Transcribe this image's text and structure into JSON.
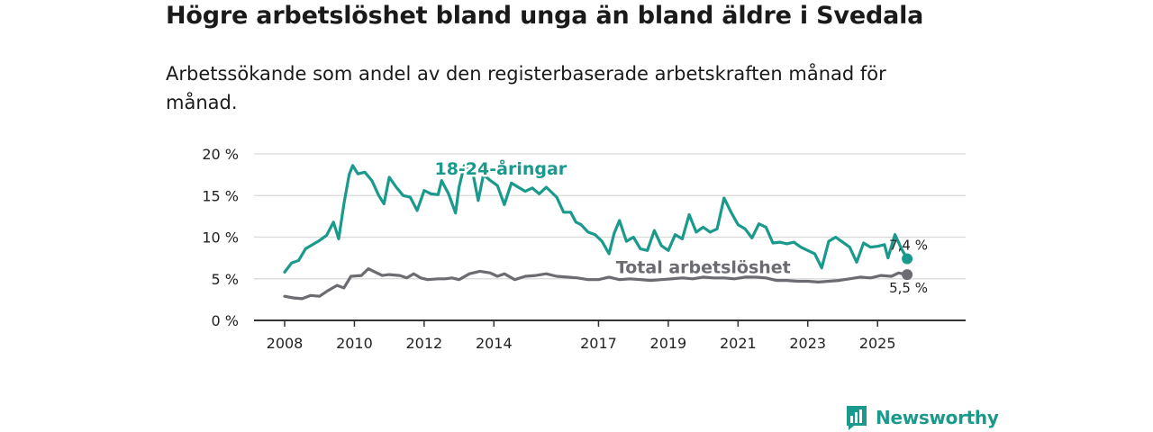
{
  "title": "Högre arbetslöshet bland unga än bland äldre i Svedala",
  "subtitle": "Arbetssökande som andel av den registerbaserade arbetskraften månad för månad.",
  "brand": {
    "name": "Newsworthy",
    "icon": "newsworthy-logo-icon",
    "color": "#1a9a8c"
  },
  "chart_data": {
    "type": "line",
    "title": "Högre arbetslöshet bland unga än bland äldre i Svedala",
    "xlabel": "",
    "ylabel": "",
    "ylim": [
      0,
      20
    ],
    "xlim": [
      2008,
      2026.7
    ],
    "grid": true,
    "y_ticks": [
      {
        "value": 0,
        "label": "0 %"
      },
      {
        "value": 5,
        "label": "5 %"
      },
      {
        "value": 10,
        "label": "10 %"
      },
      {
        "value": 15,
        "label": "15 %"
      },
      {
        "value": 20,
        "label": "20 %"
      }
    ],
    "x_ticks": [
      {
        "value": 2008,
        "label": "2008"
      },
      {
        "value": 2010,
        "label": "2010"
      },
      {
        "value": 2012,
        "label": "2012"
      },
      {
        "value": 2014,
        "label": "2014"
      },
      {
        "value": 2017,
        "label": "2017"
      },
      {
        "value": 2019,
        "label": "2019"
      },
      {
        "value": 2021,
        "label": "2021"
      },
      {
        "value": 2023,
        "label": "2023"
      },
      {
        "value": 2025,
        "label": "2025"
      }
    ],
    "series": [
      {
        "name": "18-24-åringar",
        "color": "#1a9a8c",
        "end_label": "7,4 %",
        "points": [
          [
            2008.0,
            5.8
          ],
          [
            2008.2,
            6.9
          ],
          [
            2008.4,
            7.2
          ],
          [
            2008.6,
            8.6
          ],
          [
            2008.8,
            9.1
          ],
          [
            2009.0,
            9.6
          ],
          [
            2009.2,
            10.2
          ],
          [
            2009.4,
            11.8
          ],
          [
            2009.55,
            9.8
          ],
          [
            2009.7,
            14.0
          ],
          [
            2009.85,
            17.5
          ],
          [
            2009.95,
            18.6
          ],
          [
            2010.1,
            17.6
          ],
          [
            2010.3,
            17.8
          ],
          [
            2010.5,
            16.8
          ],
          [
            2010.7,
            15.0
          ],
          [
            2010.85,
            14.0
          ],
          [
            2011.0,
            17.2
          ],
          [
            2011.2,
            16.0
          ],
          [
            2011.4,
            15.0
          ],
          [
            2011.6,
            14.8
          ],
          [
            2011.8,
            13.2
          ],
          [
            2012.0,
            15.6
          ],
          [
            2012.2,
            15.2
          ],
          [
            2012.4,
            15.1
          ],
          [
            2012.5,
            16.8
          ],
          [
            2012.7,
            15.2
          ],
          [
            2012.9,
            12.9
          ],
          [
            2013.0,
            16.0
          ],
          [
            2013.15,
            18.6
          ],
          [
            2013.4,
            17.6
          ],
          [
            2013.55,
            14.4
          ],
          [
            2013.7,
            17.5
          ],
          [
            2013.9,
            16.8
          ],
          [
            2014.1,
            16.2
          ],
          [
            2014.3,
            13.9
          ],
          [
            2014.5,
            16.5
          ],
          [
            2014.7,
            16.0
          ],
          [
            2014.9,
            15.5
          ],
          [
            2015.1,
            15.9
          ],
          [
            2015.3,
            15.2
          ],
          [
            2015.5,
            16.0
          ],
          [
            2015.65,
            15.4
          ],
          [
            2015.8,
            14.8
          ],
          [
            2016.0,
            13.0
          ],
          [
            2016.2,
            13.0
          ],
          [
            2016.35,
            11.8
          ],
          [
            2016.5,
            11.5
          ],
          [
            2016.7,
            10.6
          ],
          [
            2016.9,
            10.3
          ],
          [
            2017.1,
            9.5
          ],
          [
            2017.3,
            8.0
          ],
          [
            2017.45,
            10.5
          ],
          [
            2017.6,
            12.0
          ],
          [
            2017.8,
            9.5
          ],
          [
            2018.0,
            10.0
          ],
          [
            2018.2,
            8.6
          ],
          [
            2018.4,
            8.4
          ],
          [
            2018.6,
            10.8
          ],
          [
            2018.8,
            9.0
          ],
          [
            2019.0,
            8.4
          ],
          [
            2019.2,
            10.3
          ],
          [
            2019.4,
            9.8
          ],
          [
            2019.6,
            12.7
          ],
          [
            2019.8,
            10.6
          ],
          [
            2020.0,
            11.2
          ],
          [
            2020.2,
            10.6
          ],
          [
            2020.4,
            11.0
          ],
          [
            2020.6,
            14.7
          ],
          [
            2020.8,
            13.0
          ],
          [
            2021.0,
            11.5
          ],
          [
            2021.2,
            11.0
          ],
          [
            2021.4,
            9.9
          ],
          [
            2021.6,
            11.6
          ],
          [
            2021.8,
            11.2
          ],
          [
            2022.0,
            9.3
          ],
          [
            2022.2,
            9.4
          ],
          [
            2022.4,
            9.2
          ],
          [
            2022.6,
            9.4
          ],
          [
            2022.8,
            8.8
          ],
          [
            2023.0,
            8.4
          ],
          [
            2023.2,
            8.0
          ],
          [
            2023.4,
            6.3
          ],
          [
            2023.6,
            9.5
          ],
          [
            2023.8,
            10.0
          ],
          [
            2024.0,
            9.4
          ],
          [
            2024.2,
            8.8
          ],
          [
            2024.4,
            7.0
          ],
          [
            2024.6,
            9.3
          ],
          [
            2024.8,
            8.8
          ],
          [
            2025.0,
            8.9
          ],
          [
            2025.2,
            9.1
          ],
          [
            2025.3,
            7.5
          ],
          [
            2025.5,
            10.3
          ],
          [
            2025.7,
            8.5
          ],
          [
            2025.85,
            7.4
          ]
        ]
      },
      {
        "name": "Total arbetslöshet",
        "color": "#6b6b72",
        "end_label": "5,5 %",
        "points": [
          [
            2008.0,
            2.9
          ],
          [
            2008.25,
            2.7
          ],
          [
            2008.5,
            2.6
          ],
          [
            2008.75,
            3.0
          ],
          [
            2009.0,
            2.9
          ],
          [
            2009.25,
            3.6
          ],
          [
            2009.5,
            4.2
          ],
          [
            2009.7,
            3.9
          ],
          [
            2009.9,
            5.3
          ],
          [
            2010.2,
            5.4
          ],
          [
            2010.4,
            6.2
          ],
          [
            2010.6,
            5.8
          ],
          [
            2010.8,
            5.4
          ],
          [
            2011.0,
            5.5
          ],
          [
            2011.3,
            5.4
          ],
          [
            2011.5,
            5.1
          ],
          [
            2011.7,
            5.6
          ],
          [
            2011.9,
            5.1
          ],
          [
            2012.1,
            4.9
          ],
          [
            2012.4,
            5.0
          ],
          [
            2012.6,
            5.0
          ],
          [
            2012.8,
            5.1
          ],
          [
            2013.0,
            4.9
          ],
          [
            2013.3,
            5.6
          ],
          [
            2013.6,
            5.9
          ],
          [
            2013.9,
            5.7
          ],
          [
            2014.1,
            5.3
          ],
          [
            2014.3,
            5.6
          ],
          [
            2014.6,
            4.9
          ],
          [
            2014.9,
            5.3
          ],
          [
            2015.2,
            5.4
          ],
          [
            2015.5,
            5.6
          ],
          [
            2015.8,
            5.3
          ],
          [
            2016.1,
            5.2
          ],
          [
            2016.4,
            5.1
          ],
          [
            2016.7,
            4.9
          ],
          [
            2017.0,
            4.9
          ],
          [
            2017.3,
            5.2
          ],
          [
            2017.6,
            4.9
          ],
          [
            2017.9,
            5.0
          ],
          [
            2018.2,
            4.9
          ],
          [
            2018.5,
            4.8
          ],
          [
            2018.8,
            4.9
          ],
          [
            2019.1,
            5.0
          ],
          [
            2019.4,
            5.1
          ],
          [
            2019.7,
            5.0
          ],
          [
            2020.0,
            5.2
          ],
          [
            2020.3,
            5.1
          ],
          [
            2020.6,
            5.1
          ],
          [
            2020.9,
            5.0
          ],
          [
            2021.2,
            5.2
          ],
          [
            2021.5,
            5.2
          ],
          [
            2021.8,
            5.1
          ],
          [
            2022.1,
            4.8
          ],
          [
            2022.4,
            4.8
          ],
          [
            2022.7,
            4.7
          ],
          [
            2023.0,
            4.7
          ],
          [
            2023.3,
            4.6
          ],
          [
            2023.6,
            4.7
          ],
          [
            2023.9,
            4.8
          ],
          [
            2024.2,
            5.0
          ],
          [
            2024.5,
            5.2
          ],
          [
            2024.8,
            5.1
          ],
          [
            2025.1,
            5.4
          ],
          [
            2025.4,
            5.3
          ],
          [
            2025.6,
            5.7
          ],
          [
            2025.85,
            5.5
          ]
        ]
      }
    ]
  }
}
